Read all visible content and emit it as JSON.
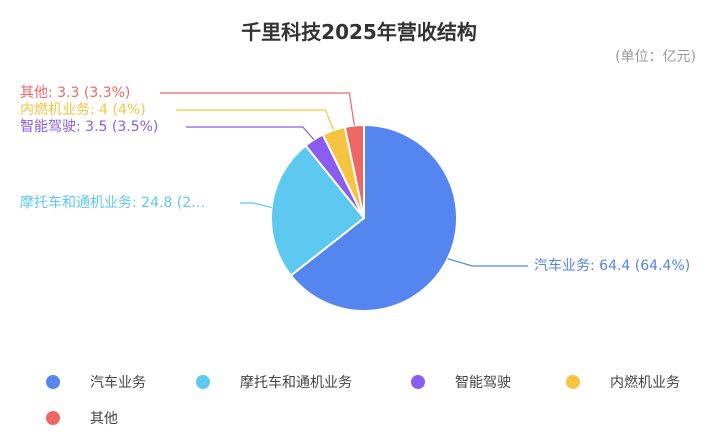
{
  "title": "千里科技2025年营收结构",
  "unit_note": "(单位：亿元)",
  "chart_data": {
    "type": "pie",
    "title": "千里科技2025年营收结构",
    "unit": "亿元",
    "categories": [
      "汽车业务",
      "摩托车和通机业务",
      "智能驾驶",
      "内燃机业务",
      "其他"
    ],
    "values": [
      64.4,
      24.8,
      3.5,
      4,
      3.3
    ],
    "percents": [
      64.4,
      24.8,
      3.5,
      4,
      3.3
    ],
    "labels": [
      "汽车业务: 64.4 (64.4%)",
      "摩托车和通机业务: 24.8 (2…",
      "智能驾驶: 3.5 (3.5%)",
      "内燃机业务: 4 (4%)",
      "其他: 3.3 (3.3%)"
    ],
    "colors": [
      "#5585EE",
      "#5DC8F0",
      "#8B5CF0",
      "#F5C542",
      "#EE6666"
    ],
    "legend_position": "bottom"
  }
}
